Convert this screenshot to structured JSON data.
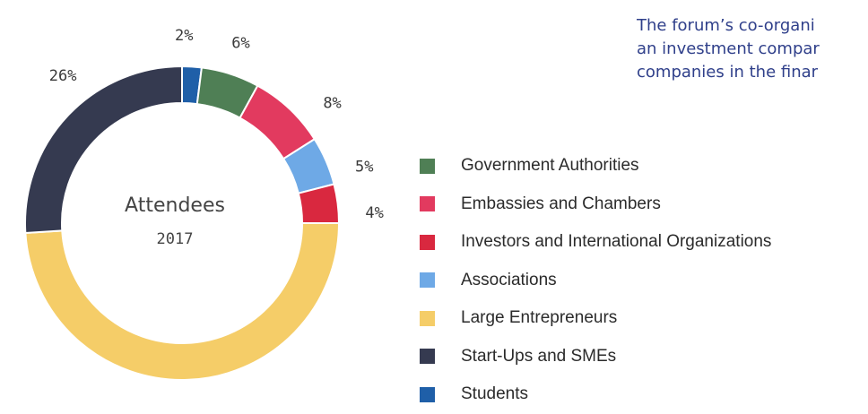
{
  "header": {
    "lines": [
      "The forum’s co-organi",
      "an investment compar",
      "companies in the finar"
    ]
  },
  "chart_data": {
    "type": "pie",
    "variant": "donut",
    "center_title": "Attendees",
    "center_subtitle": "2017",
    "slices": [
      {
        "label": "Students",
        "value": 2,
        "display": "2%",
        "color": "#1f5fa8"
      },
      {
        "label": "Government Authorities",
        "value": 6,
        "display": "6%",
        "color": "#4f7f55"
      },
      {
        "label": "Embassies and Chambers",
        "value": 8,
        "display": "8%",
        "color": "#e23a5f"
      },
      {
        "label": "Associations",
        "value": 5,
        "display": "5%",
        "color": "#6ea9e6"
      },
      {
        "label": "Investors and International Organizations",
        "value": 4,
        "display": "4%",
        "color": "#d9283f"
      },
      {
        "label": "Large Entrepreneurs",
        "value": 49,
        "display": "49%",
        "color": "#f5cd68"
      },
      {
        "label": "Start-Ups and SMEs",
        "value": 26,
        "display": "26%",
        "color": "#353a50"
      }
    ],
    "legend_order": [
      "Government Authorities",
      "Embassies and Chambers",
      "Investors and International Organizations",
      "Associations",
      "Large Entrepreneurs",
      "Start-Ups and SMEs",
      "Students"
    ],
    "legend_position": "right"
  }
}
